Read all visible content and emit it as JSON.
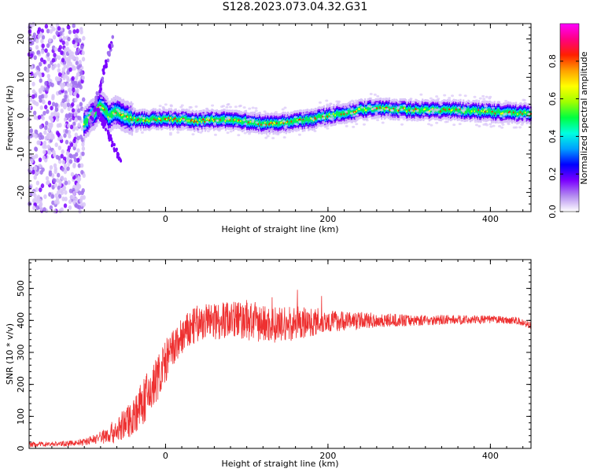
{
  "title": "S128.2023.073.04.32.G31",
  "chart_data": [
    {
      "type": "heatmap",
      "title": "S128.2023.073.04.32.G31",
      "xlabel": "Height of straight line (km)",
      "ylabel": "Frequency (Hz)",
      "xlim": [
        -168,
        450
      ],
      "ylim": [
        -25,
        24
      ],
      "x_ticks": [
        0,
        200,
        400
      ],
      "y_ticks": [
        -20,
        -10,
        0,
        10,
        20
      ],
      "colorbar": {
        "label": "Normalized spectral amplitude",
        "range": [
          0,
          1
        ],
        "ticks": [
          "0.0",
          "0.2",
          "0.4",
          "0.6",
          "0.8"
        ],
        "colormap": [
          "#ffffff",
          "#b48cf0",
          "#7a00ff",
          "#0000ff",
          "#00a0ff",
          "#00ffe0",
          "#00ff40",
          "#a0ff00",
          "#ffff00",
          "#ffa000",
          "#ff2000",
          "#ff0080",
          "#ff00ff"
        ]
      },
      "ridge": {
        "x": [
          -100,
          -90,
          -80,
          -70,
          -60,
          -50,
          -40,
          -20,
          0,
          20,
          40,
          60,
          80,
          100,
          120,
          140,
          160,
          180,
          200,
          220,
          240,
          260,
          300,
          350,
          400,
          450
        ],
        "y": [
          -2,
          0,
          3,
          0,
          1,
          0,
          -1,
          -1,
          -1,
          -1,
          -1.5,
          -1,
          -1,
          -1.5,
          -2,
          -2,
          -1.5,
          -1,
          0,
          0.5,
          1.5,
          2,
          1.5,
          1.5,
          1,
          0.5
        ]
      },
      "noise_region_x": [
        -168,
        -100
      ]
    },
    {
      "type": "line",
      "xlabel": "Height of straight line (km)",
      "ylabel": "SNR (10 * v/v)",
      "xlim": [
        -168,
        450
      ],
      "ylim": [
        0,
        590
      ],
      "x_ticks": [
        0,
        200,
        400
      ],
      "y_ticks": [
        0,
        100,
        200,
        300,
        400,
        500
      ],
      "color": "#ee3030",
      "envelope": {
        "x": [
          -168,
          -120,
          -100,
          -80,
          -60,
          -40,
          -20,
          0,
          20,
          40,
          60,
          80,
          100,
          120,
          140,
          160,
          180,
          200,
          250,
          300,
          350,
          400,
          430,
          450
        ],
        "y": [
          12,
          15,
          20,
          35,
          55,
          100,
          170,
          270,
          350,
          390,
          400,
          405,
          400,
          390,
          385,
          390,
          395,
          398,
          400,
          400,
          402,
          403,
          400,
          385
        ],
        "spread": [
          8,
          8,
          10,
          20,
          40,
          60,
          80,
          70,
          60,
          60,
          60,
          60,
          65,
          60,
          55,
          55,
          45,
          35,
          25,
          18,
          15,
          12,
          12,
          12
        ]
      }
    }
  ]
}
